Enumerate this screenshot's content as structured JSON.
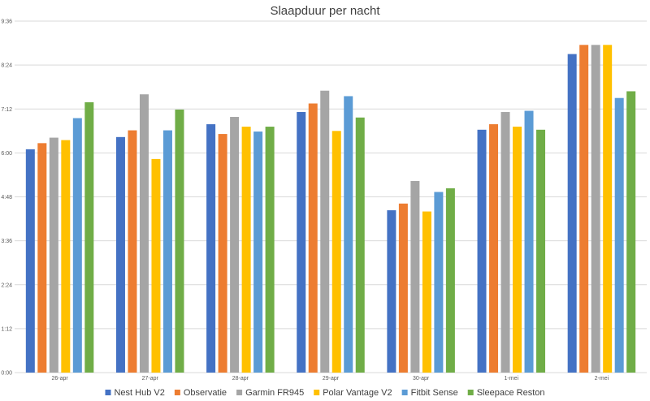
{
  "chart_data": {
    "type": "bar",
    "title": "Slaapduur per nacht",
    "xlabel": "",
    "ylabel": "",
    "ylim": [
      0,
      576
    ],
    "yticks": [
      0,
      72,
      144,
      216,
      288,
      360,
      432,
      504,
      576
    ],
    "ytick_labels": [
      "0:00",
      "1:12",
      "2:24",
      "3:36",
      "4:48",
      "6:00",
      "7:12",
      "8:24",
      "9:36"
    ],
    "categories": [
      "26-apr",
      "27-apr",
      "28-apr",
      "29-apr",
      "30-apr",
      "1-mei",
      "2-mei"
    ],
    "grid": true,
    "legend": "bottom",
    "series": [
      {
        "name": "Nest Hub V2",
        "color": "#4472C4",
        "values": [
          366,
          386,
          407,
          427,
          266,
          398,
          522
        ]
      },
      {
        "name": "Observatie",
        "color": "#ED7D31",
        "values": [
          376,
          397,
          391,
          441,
          277,
          407,
          537
        ]
      },
      {
        "name": "Garmin FR945",
        "color": "#A5A5A5",
        "values": [
          385,
          456,
          419,
          462,
          314,
          427,
          537
        ]
      },
      {
        "name": "Polar Vantage V2",
        "color": "#FFC000",
        "values": [
          381,
          350,
          403,
          396,
          264,
          403,
          537
        ]
      },
      {
        "name": "Fitbit Sense",
        "color": "#5B9BD5",
        "values": [
          417,
          397,
          395,
          453,
          296,
          429,
          450
        ]
      },
      {
        "name": "Sleepace Reston",
        "color": "#70AD47",
        "values": [
          443,
          431,
          403,
          418,
          302,
          398,
          461
        ]
      }
    ]
  }
}
